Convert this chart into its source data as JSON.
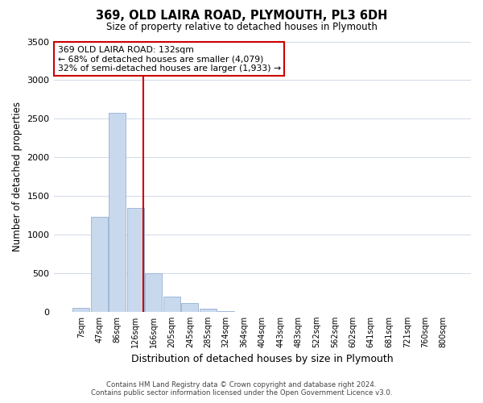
{
  "title": "369, OLD LAIRA ROAD, PLYMOUTH, PL3 6DH",
  "subtitle": "Size of property relative to detached houses in Plymouth",
  "xlabel": "Distribution of detached houses by size in Plymouth",
  "ylabel": "Number of detached properties",
  "bar_color": "#c9d9ed",
  "bar_edge_color": "#a0b8d8",
  "vline_color": "#cc0000",
  "annotation_box_color": "#cc0000",
  "annotation_lines": [
    "369 OLD LAIRA ROAD: 132sqm",
    "← 68% of detached houses are smaller (4,079)",
    "32% of semi-detached houses are larger (1,933) →"
  ],
  "categories": [
    "7sqm",
    "47sqm",
    "86sqm",
    "126sqm",
    "166sqm",
    "205sqm",
    "245sqm",
    "285sqm",
    "324sqm",
    "364sqm",
    "404sqm",
    "443sqm",
    "483sqm",
    "522sqm",
    "562sqm",
    "602sqm",
    "641sqm",
    "681sqm",
    "721sqm",
    "760sqm",
    "800sqm"
  ],
  "values": [
    50,
    1230,
    2580,
    1340,
    500,
    200,
    110,
    40,
    5,
    3,
    2,
    1,
    1,
    0,
    0,
    0,
    0,
    0,
    0,
    0,
    0
  ],
  "ylim": [
    0,
    3500
  ],
  "yticks": [
    0,
    500,
    1000,
    1500,
    2000,
    2500,
    3000,
    3500
  ],
  "footnote_line1": "Contains HM Land Registry data © Crown copyright and database right 2024.",
  "footnote_line2": "Contains public sector information licensed under the Open Government Licence v3.0.",
  "background_color": "#ffffff",
  "grid_color": "#d0d8e8",
  "vline_bin_index": 3
}
